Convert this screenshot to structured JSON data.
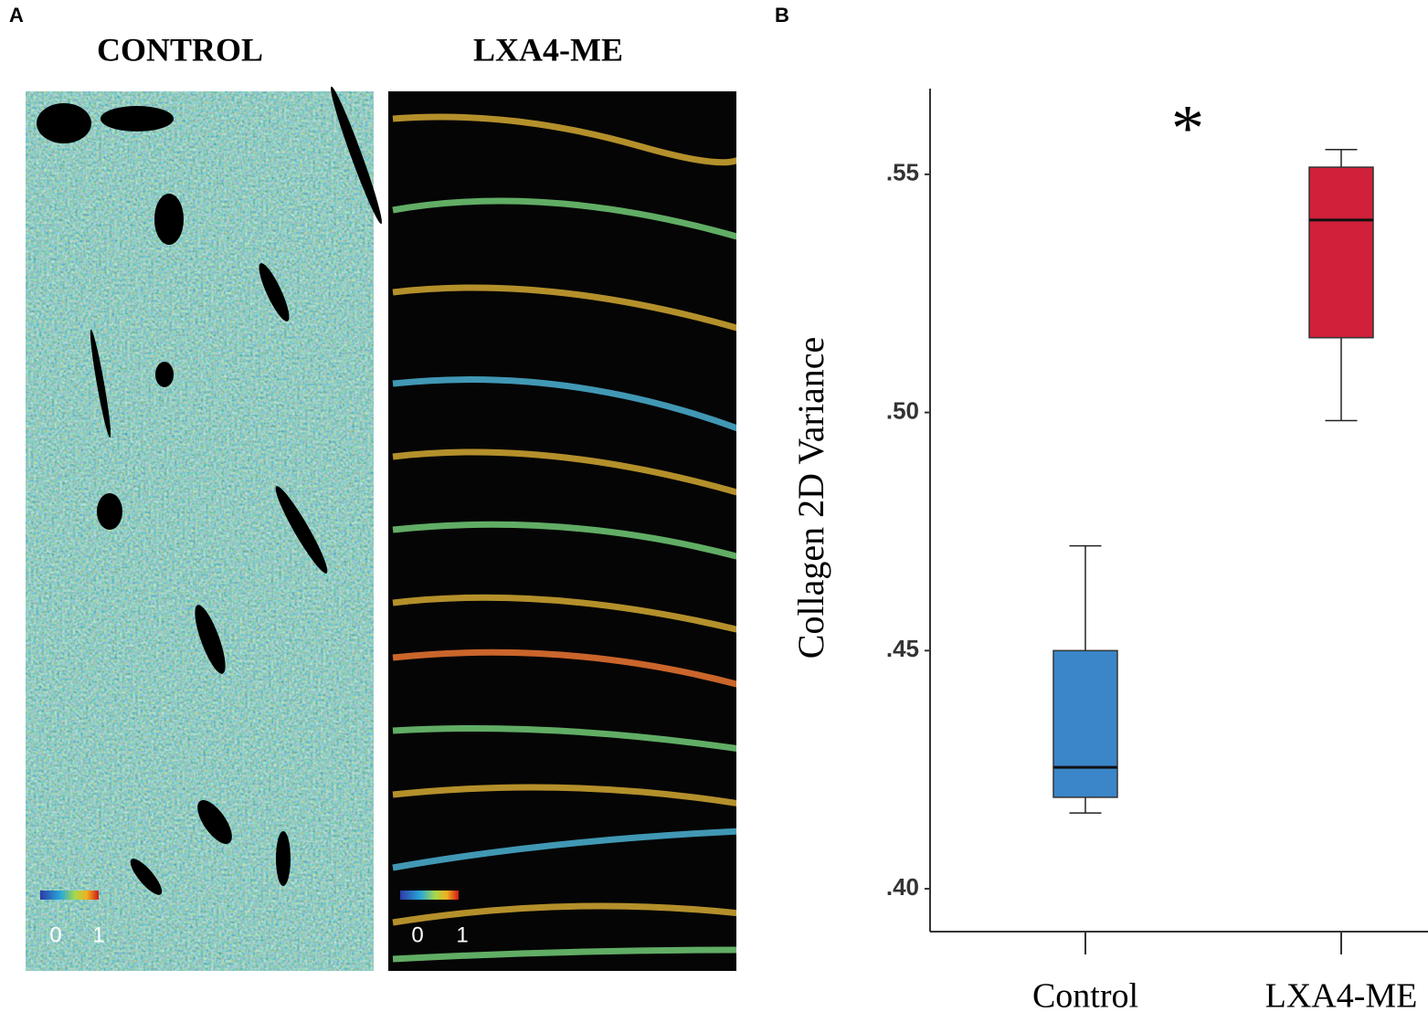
{
  "panels": {
    "a": {
      "label": "A",
      "images": [
        {
          "title": "CONTROL",
          "scale": [
            "0",
            "1"
          ]
        },
        {
          "title": "LXA4-ME",
          "scale": [
            "0",
            "1"
          ]
        }
      ]
    },
    "b": {
      "label": "B"
    }
  },
  "chart_data": {
    "type": "box",
    "categories": [
      "Control",
      "LXA4-ME"
    ],
    "stats": [
      {
        "min": 0.4159,
        "q1": 0.4192,
        "median": 0.4255,
        "q3": 0.45,
        "max": 0.472
      },
      {
        "min": 0.4983,
        "q1": 0.5157,
        "median": 0.5404,
        "q3": 0.5515,
        "max": 0.5552
      }
    ],
    "colors": [
      "#3a86c8",
      "#d0203a"
    ],
    "y_label": "Collagen 2D Variance",
    "annotation": "*",
    "ylim": [
      0.391,
      0.568
    ],
    "yticks": [
      {
        "value": 0.4,
        "label": ".40"
      },
      {
        "value": 0.45,
        "label": ".45"
      },
      {
        "value": 0.5,
        "label": ".50"
      },
      {
        "value": 0.55,
        "label": ".55"
      }
    ]
  }
}
